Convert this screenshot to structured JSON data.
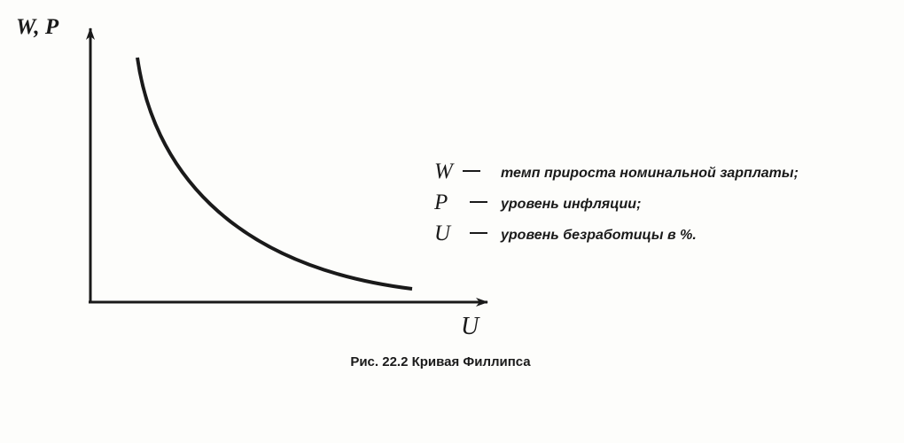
{
  "axes": {
    "y_label": "W, P",
    "x_label": "U"
  },
  "legend": [
    {
      "symbol": "W",
      "text": "темп прироста номинальной зарплаты;"
    },
    {
      "symbol": "P",
      "text": "уровень инфляции;"
    },
    {
      "symbol": "U",
      "text": "уровень безработицы в %."
    }
  ],
  "caption": "Рис. 22.2 Кривая Филлипса"
}
